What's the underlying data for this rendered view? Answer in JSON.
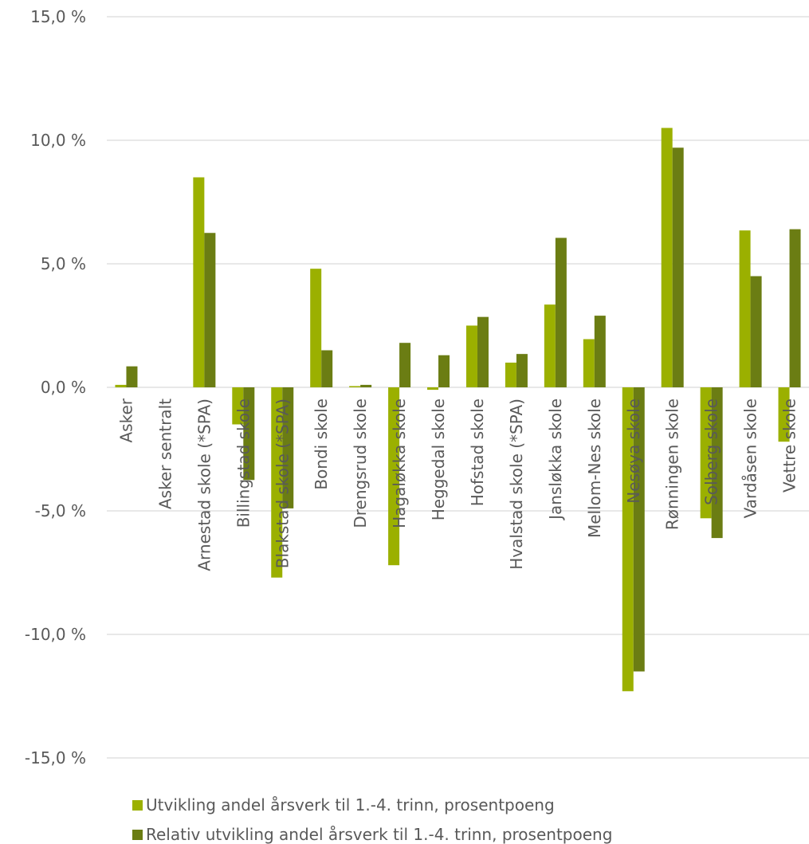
{
  "chart_data": {
    "type": "bar",
    "categories": [
      "Asker",
      "Asker sentralt",
      "Arnestad skole (*SPA)",
      "Billingstad skole",
      "Blakstad skole (*SPA)",
      "Bondi skole",
      "Drengsrud skole",
      "Hagaløkka skole",
      "Heggedal skole",
      "Hofstad skole",
      "Hvalstad skole (*SPA)",
      "Jansløkka skole",
      "Mellom-Nes skole",
      "Nesøya skole",
      "Rønningen skole",
      "Solberg skole",
      "Vardåsen skole",
      "Vettre skole"
    ],
    "series": [
      {
        "name": "Utvikling andel årsverk til 1.-4. trinn, prosentpoeng",
        "color": "#9bb000",
        "values": [
          0.1,
          0.0,
          8.5,
          -1.5,
          -7.7,
          4.8,
          0.05,
          -7.2,
          -0.1,
          2.5,
          1.0,
          3.35,
          1.95,
          -12.3,
          10.5,
          -5.3,
          6.35,
          -2.2
        ]
      },
      {
        "name": "Relativ utvikling andel årsverk til 1.-4. trinn, prosentpoeng",
        "color": "#6b7d13",
        "values": [
          0.85,
          0.0,
          6.25,
          -3.75,
          -4.9,
          1.5,
          0.1,
          1.8,
          1.3,
          2.85,
          1.35,
          6.05,
          2.9,
          -11.5,
          9.7,
          -6.1,
          4.5,
          6.4
        ]
      }
    ],
    "ylim": [
      -15,
      15
    ],
    "yticks": [
      15,
      10,
      5,
      0,
      -5,
      -10,
      -15
    ],
    "ytick_labels": [
      "15,0 %",
      "10,0 %",
      "5,0 %",
      "0,0 %",
      "-5,0 %",
      "-10,0 %",
      "-15,0 %"
    ],
    "grid": true,
    "legend_position": "bottom"
  }
}
